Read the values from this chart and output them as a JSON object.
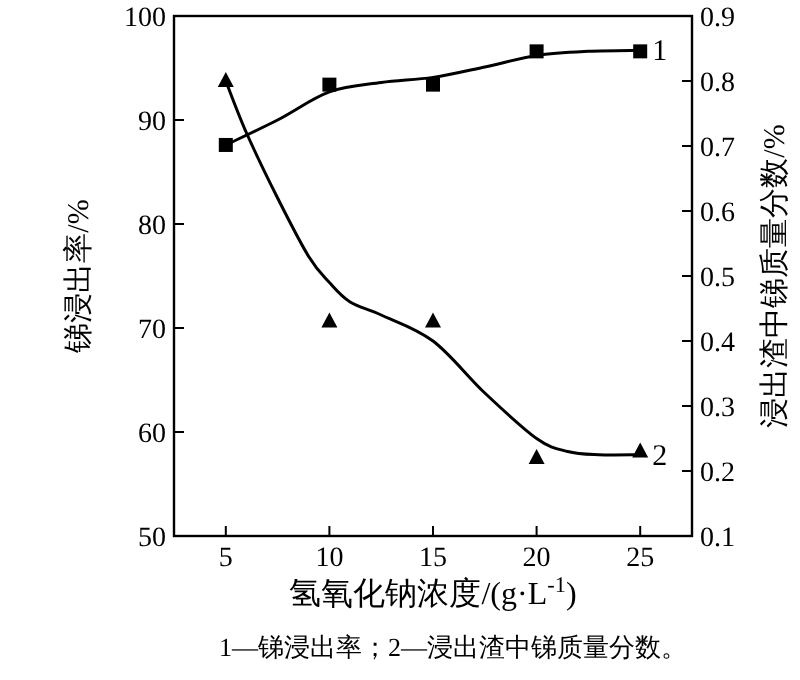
{
  "chart_data": {
    "type": "scatter",
    "xlabel": "氢氧化钠浓度/(g·L$^{-1}$)",
    "ylabel": "锑浸出率/%",
    "y2label": "浸出渣中锑质量分数/%",
    "xlim": [
      2.5,
      27.5
    ],
    "xticks": [
      5,
      10,
      15,
      20,
      25
    ],
    "ylim": [
      50,
      100
    ],
    "yticks": [
      50,
      60,
      70,
      80,
      90,
      100
    ],
    "y2lim": [
      0.1,
      0.9
    ],
    "y2ticks": [
      0.1,
      0.2,
      0.3,
      0.4,
      0.5,
      0.6,
      0.7,
      0.8,
      0.9
    ],
    "grid": false,
    "series": [
      {
        "marker": "square",
        "color": "#000000",
        "x": [
          5,
          10,
          15,
          20,
          25
        ],
        "values": [
          87.6,
          93.4,
          93.4,
          96.6,
          96.6
        ]
      },
      {
        "marker": "triangle",
        "axis": "y2",
        "color": "#000000",
        "x": [
          5,
          10,
          15,
          20,
          25
        ],
        "values": [
          0.8,
          0.43,
          0.43,
          0.22,
          0.23
        ]
      },
      {
        "type": "line",
        "name": "1",
        "marker": "none",
        "line_style": "solid",
        "color": "#000000",
        "x": [
          5,
          7.5,
          10,
          12.5,
          15,
          17.5,
          20,
          22.5,
          25
        ],
        "values": [
          87.6,
          90,
          92.7,
          93.6,
          94.1,
          95.1,
          96.2,
          96.6,
          96.7
        ]
      },
      {
        "type": "line",
        "name": "2",
        "marker": "none",
        "line_style": "solid",
        "axis": "y2",
        "color": "#000000",
        "x": [
          5,
          6,
          7.5,
          9,
          10,
          11,
          12.5,
          15,
          17.5,
          20,
          21.5,
          23,
          25
        ],
        "values": [
          0.8,
          0.72,
          0.62,
          0.53,
          0.49,
          0.46,
          0.44,
          0.4,
          0.32,
          0.25,
          0.23,
          0.225,
          0.225
        ]
      }
    ],
    "annotations": [
      "1—锑浸出率；2—浸出渣中锑质量分数。"
    ]
  }
}
